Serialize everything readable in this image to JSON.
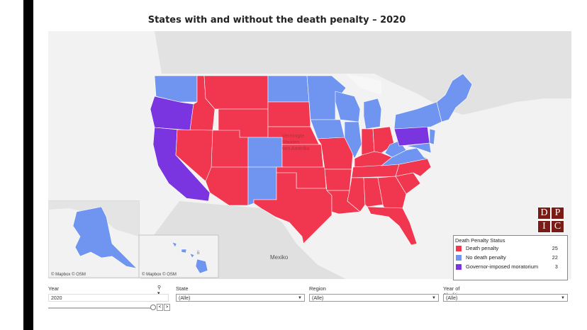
{
  "title": "States with and without the death penalty – 2020",
  "map": {
    "country_label": "Vereinigte Staaten von Amerika",
    "mexico_label": "Mexiko",
    "hawaii_partial_label": "ii",
    "attribution_main": "© Mapbox © OSM",
    "attribution_inset": "© Mapbox © OSM",
    "colors": {
      "death_penalty": "#f0374f",
      "no_death_penalty": "#6f95f0",
      "moratorium": "#7a34e0",
      "land": "#e6e6e6",
      "water": "#f4f4f4"
    }
  },
  "legend": {
    "title": "Death Penalty Status",
    "items": [
      {
        "label": "Death penalty",
        "count": "25",
        "color": "#f0374f"
      },
      {
        "label": "No death penalty",
        "count": "22",
        "color": "#6f95f0"
      },
      {
        "label": "Governor-imposed moratorium",
        "count": "3",
        "color": "#7a34e0"
      }
    ]
  },
  "logo": {
    "letters": [
      "D",
      "P",
      "I",
      "C"
    ]
  },
  "filters": {
    "year": {
      "label": "Year",
      "value": "2020"
    },
    "state": {
      "label": "State",
      "value": "(Alle)"
    },
    "region": {
      "label": "Region",
      "value": "(Alle)"
    },
    "abolition": {
      "label": "Year of Abolition",
      "value": "(Alle)"
    }
  }
}
